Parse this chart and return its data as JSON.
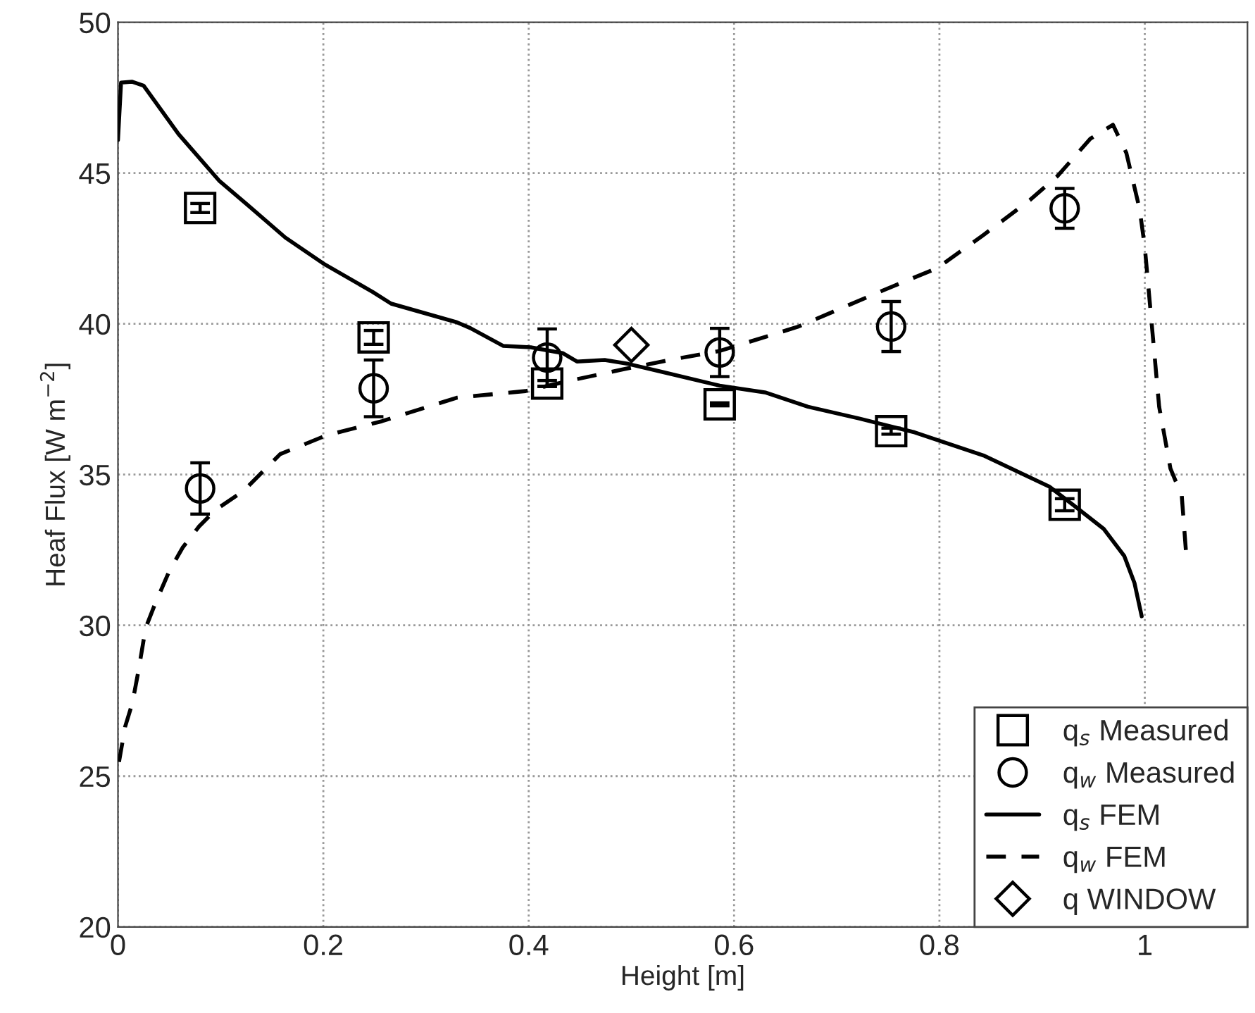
{
  "chart_data": {
    "type": "scatter",
    "xlabel": "Height [m]",
    "ylabel": "Heaf Flux [W m$^{−2}$]",
    "xlim": [
      0,
      1.1
    ],
    "ylim": [
      20,
      50
    ],
    "xticks": [
      0,
      0.2,
      0.4,
      0.6,
      0.8,
      1
    ],
    "yticks": [
      20,
      25,
      30,
      35,
      40,
      45,
      50
    ],
    "grid": true,
    "legend": "bottom right",
    "series": [
      {
        "name": "q$_{s}$ Measured",
        "marker": "square",
        "color": "#000000",
        "x": [
          0.08,
          0.249,
          0.418,
          0.586,
          0.753,
          0.922
        ],
        "values": [
          43.84,
          39.55,
          38.02,
          37.33,
          36.44,
          34.0
        ],
        "errors": [
          0.15,
          0.23,
          0.1,
          0.05,
          0.1,
          0.2
        ]
      },
      {
        "name": "q$_{w}$ Measured",
        "marker": "circle",
        "color": "#000000",
        "x": [
          0.08,
          0.249,
          0.418,
          0.586,
          0.753,
          0.922
        ],
        "values": [
          34.54,
          37.86,
          38.88,
          39.05,
          39.91,
          43.83
        ],
        "errors": [
          0.85,
          0.94,
          0.95,
          0.8,
          0.83,
          0.66
        ]
      },
      {
        "name": "q$_{s}$ FEM",
        "type": "line",
        "line_style": "solid",
        "color": "#000000",
        "x": [
          0.0,
          0.003,
          0.0135,
          0.025,
          0.059,
          0.099,
          0.126,
          0.163,
          0.2,
          0.248,
          0.266,
          0.33,
          0.343,
          0.375,
          0.402,
          0.433,
          0.447,
          0.474,
          0.497,
          0.528,
          0.586,
          0.631,
          0.672,
          0.722,
          0.776,
          0.844,
          0.907,
          0.93,
          0.96,
          0.98,
          0.99,
          0.997
        ],
        "values": [
          46.1,
          48.0,
          48.03,
          47.9,
          46.29,
          44.73,
          43.95,
          42.86,
          42.0,
          41.06,
          40.67,
          40.05,
          39.86,
          39.27,
          39.22,
          39.03,
          38.75,
          38.8,
          38.67,
          38.42,
          37.95,
          37.72,
          37.25,
          36.86,
          36.4,
          35.62,
          34.6,
          34.0,
          33.2,
          32.3,
          31.4,
          30.3
        ]
      },
      {
        "name": "q$_{w}$ FEM",
        "type": "line",
        "line_style": "dashed",
        "color": "#000000",
        "x": [
          0.001,
          0.007,
          0.014,
          0.02,
          0.027,
          0.036,
          0.05,
          0.063,
          0.079,
          0.095,
          0.122,
          0.158,
          0.203,
          0.257,
          0.33,
          0.397,
          0.438,
          0.492,
          0.537,
          0.586,
          0.662,
          0.748,
          0.798,
          0.843,
          0.888,
          0.915,
          0.947,
          0.969,
          0.982,
          0.995,
          1.0,
          1.007,
          1.014,
          1.025,
          1.036,
          1.04
        ],
        "values": [
          25.47,
          26.64,
          27.42,
          28.5,
          29.92,
          30.7,
          31.8,
          32.58,
          33.28,
          33.83,
          34.45,
          35.68,
          36.3,
          36.77,
          37.55,
          37.77,
          38.1,
          38.49,
          38.8,
          39.1,
          39.9,
          41.15,
          41.85,
          42.95,
          44.1,
          44.9,
          46.14,
          46.6,
          45.67,
          43.8,
          42.55,
          39.9,
          37.25,
          35.2,
          34.3,
          32.5
        ]
      },
      {
        "name": "q WINDOW",
        "marker": "diamond",
        "color": "#000000",
        "x": [
          0.5
        ],
        "values": [
          39.3
        ]
      }
    ]
  }
}
